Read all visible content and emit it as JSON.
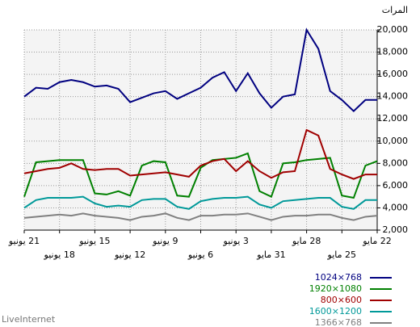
{
  "chart_data": {
    "type": "line",
    "title": "المرات",
    "footer": "LiveInternet",
    "categories": [
      "21 يونيو",
      null,
      null,
      "18 يونيو",
      null,
      null,
      "15 يونيو",
      null,
      null,
      "12 يونيو",
      null,
      null,
      "9 يونيو",
      null,
      null,
      "6 يونيو",
      null,
      null,
      "3 يونيو",
      null,
      null,
      "31 مايو",
      null,
      null,
      "28 مايو",
      null,
      null,
      "25 مايو",
      null,
      null,
      "22 مايو"
    ],
    "series": [
      {
        "name": "1024×768",
        "color": "#000080",
        "values": [
          14000,
          14800,
          14700,
          15300,
          15500,
          15300,
          14900,
          15000,
          14700,
          13500,
          13900,
          14300,
          14500,
          13800,
          14300,
          14800,
          15700,
          16200,
          14500,
          16100,
          14300,
          13000,
          14000,
          14200,
          20000,
          18300,
          14500,
          13700,
          12700,
          13700,
          13700
        ]
      },
      {
        "name": "1920×1080",
        "color": "#008000",
        "values": [
          5000,
          8100,
          8200,
          8300,
          8300,
          8300,
          5300,
          5200,
          5500,
          5100,
          7800,
          8200,
          8100,
          5100,
          5000,
          7600,
          8300,
          8400,
          8500,
          8900,
          5500,
          5000,
          8000,
          8100,
          8300,
          8400,
          8500,
          5100,
          4900,
          7800,
          8200
        ]
      },
      {
        "name": "800×600",
        "color": "#a00000",
        "values": [
          7100,
          7300,
          7500,
          7600,
          8000,
          7500,
          7400,
          7500,
          7500,
          6900,
          7000,
          7100,
          7200,
          7000,
          6800,
          7800,
          8200,
          8400,
          7300,
          8200,
          7300,
          6700,
          7200,
          7300,
          11000,
          10500,
          7500,
          7000,
          6600,
          7000,
          7000
        ]
      },
      {
        "name": "1600×1200",
        "color": "#009999",
        "values": [
          4000,
          4700,
          4900,
          4900,
          4900,
          5000,
          4400,
          4100,
          4200,
          4100,
          4700,
          4800,
          4800,
          4100,
          3900,
          4600,
          4800,
          4900,
          4900,
          5000,
          4300,
          4000,
          4600,
          4700,
          4800,
          4900,
          4900,
          4100,
          3900,
          4700,
          4700
        ]
      },
      {
        "name": "1366×768",
        "color": "#808080",
        "values": [
          3100,
          3200,
          3300,
          3400,
          3300,
          3500,
          3300,
          3200,
          3100,
          2900,
          3200,
          3300,
          3500,
          3100,
          2900,
          3300,
          3300,
          3400,
          3400,
          3500,
          3200,
          2900,
          3200,
          3300,
          3300,
          3400,
          3400,
          3100,
          2900,
          3200,
          3300
        ]
      }
    ],
    "ylim": [
      2000,
      20000
    ],
    "yticks": [
      {
        "value": 2000,
        "label": "2,000"
      },
      {
        "value": 4000,
        "label": "4,000"
      },
      {
        "value": 6000,
        "label": "6,000"
      },
      {
        "value": 8000,
        "label": "8,000"
      },
      {
        "value": 10000,
        "label": "10,000"
      },
      {
        "value": 12000,
        "label": "12,000"
      },
      {
        "value": 14000,
        "label": "14,000"
      },
      {
        "value": 16000,
        "label": "16,000"
      },
      {
        "value": 18000,
        "label": "18,000"
      },
      {
        "value": 20000,
        "label": "20,000"
      }
    ],
    "grid": true
  }
}
